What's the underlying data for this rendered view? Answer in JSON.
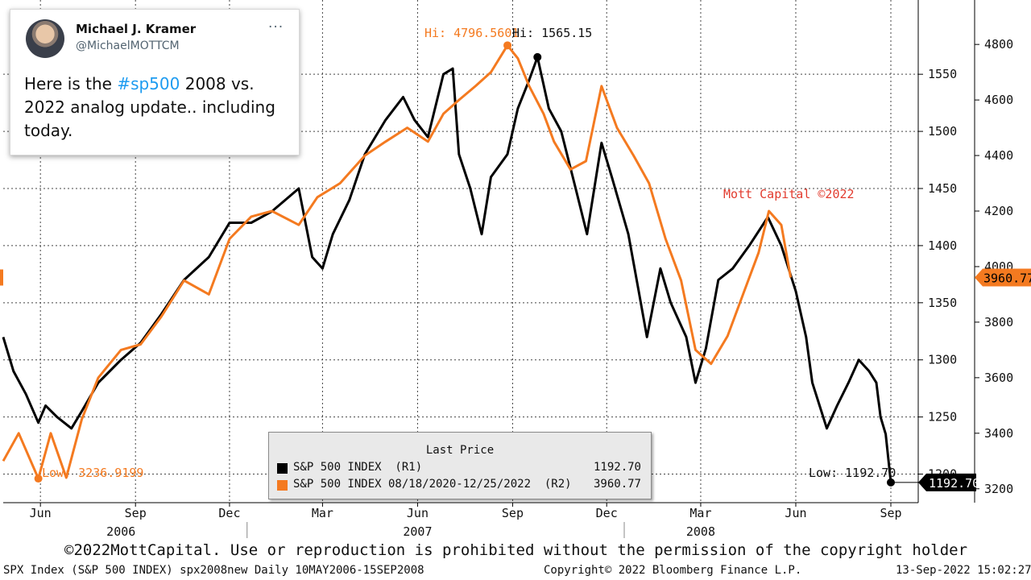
{
  "tweet": {
    "author_name": "Michael J. Kramer",
    "handle": "@MichaelMOTTCM",
    "more": "···",
    "text_before": "Here is the ",
    "hashtag": "#sp500",
    "text_after": " 2008 vs. 2022 analog update.. including today."
  },
  "chart_data": {
    "type": "line",
    "x_axis": {
      "month_labels": [
        "Jun",
        "Sep",
        "Dec",
        "Mar",
        "Jun",
        "Sep",
        "Dec",
        "Mar",
        "Jun",
        "Sep"
      ],
      "year_labels": [
        "2006",
        "2007",
        "2008"
      ],
      "date_range": [
        "2006-05-10",
        "2008-09-15"
      ]
    },
    "left_axis": {
      "ylim": [
        1175,
        1615
      ],
      "ticks": [
        1200,
        1250,
        1300,
        1350,
        1400,
        1450,
        1500,
        1550
      ]
    },
    "right_axis": {
      "ylim": [
        3150,
        4960
      ],
      "ticks": [
        3200,
        3400,
        3600,
        3800,
        4000,
        4200,
        4400,
        4600,
        4800
      ]
    },
    "grid": true,
    "series": [
      {
        "name": "S&P 500 INDEX  (R1)",
        "axis": "left",
        "color": "#000000",
        "x": [
          "2006-05-10",
          "2006-05-20",
          "2006-06-01",
          "2006-06-13",
          "2006-06-20",
          "2006-07-01",
          "2006-07-15",
          "2006-07-25",
          "2006-08-10",
          "2006-09-01",
          "2006-09-20",
          "2006-10-10",
          "2006-11-01",
          "2006-11-25",
          "2006-12-15",
          "2007-01-05",
          "2007-01-25",
          "2007-02-20",
          "2007-03-05",
          "2007-03-15",
          "2007-03-25",
          "2007-04-10",
          "2007-04-25",
          "2007-05-15",
          "2007-06-01",
          "2007-06-12",
          "2007-06-25",
          "2007-07-10",
          "2007-07-19",
          "2007-07-25",
          "2007-08-05",
          "2007-08-16",
          "2007-08-25",
          "2007-09-10",
          "2007-09-20",
          "2007-10-01",
          "2007-10-09",
          "2007-10-20",
          "2007-11-01",
          "2007-11-15",
          "2007-11-26",
          "2007-12-10",
          "2007-12-20",
          "2008-01-05",
          "2008-01-15",
          "2008-01-23",
          "2008-02-05",
          "2008-02-15",
          "2008-03-01",
          "2008-03-10",
          "2008-03-20",
          "2008-04-01",
          "2008-04-15",
          "2008-05-01",
          "2008-05-19",
          "2008-06-01",
          "2008-06-15",
          "2008-06-25",
          "2008-07-01",
          "2008-07-15",
          "2008-07-25",
          "2008-08-05",
          "2008-08-15",
          "2008-08-25",
          "2008-09-01",
          "2008-09-05",
          "2008-09-10",
          "2008-09-15"
        ],
        "values": [
          1320,
          1290,
          1270,
          1245,
          1260,
          1250,
          1240,
          1255,
          1280,
          1300,
          1315,
          1340,
          1370,
          1390,
          1420,
          1420,
          1430,
          1450,
          1390,
          1380,
          1410,
          1440,
          1480,
          1510,
          1530,
          1510,
          1495,
          1550,
          1555,
          1480,
          1450,
          1410,
          1460,
          1480,
          1520,
          1545,
          1565,
          1520,
          1500,
          1450,
          1410,
          1490,
          1460,
          1410,
          1360,
          1320,
          1380,
          1350,
          1320,
          1280,
          1310,
          1370,
          1380,
          1400,
          1425,
          1400,
          1360,
          1320,
          1280,
          1240,
          1260,
          1280,
          1300,
          1290,
          1280,
          1250,
          1235,
          1192.7
        ]
      },
      {
        "name": "S&P 500 INDEX 08/18/2020-12/25/2022  (R2)",
        "axis": "right",
        "color": "#f47a20",
        "x": [
          "2006-05-10",
          "2006-05-25",
          "2006-06-13",
          "2006-06-25",
          "2006-07-10",
          "2006-07-25",
          "2006-08-10",
          "2006-09-01",
          "2006-09-20",
          "2006-10-10",
          "2006-11-01",
          "2006-11-25",
          "2006-12-15",
          "2007-01-05",
          "2007-01-25",
          "2007-02-20",
          "2007-03-10",
          "2007-04-01",
          "2007-04-25",
          "2007-05-15",
          "2007-06-05",
          "2007-06-25",
          "2007-07-10",
          "2007-07-25",
          "2007-08-10",
          "2007-08-25",
          "2007-09-10",
          "2007-09-20",
          "2007-10-01",
          "2007-10-15",
          "2007-10-25",
          "2007-11-10",
          "2007-11-25",
          "2007-12-10",
          "2007-12-25",
          "2008-01-10",
          "2008-01-25",
          "2008-02-10",
          "2008-02-25",
          "2008-03-10",
          "2008-03-25",
          "2008-04-10",
          "2008-04-25",
          "2008-05-10",
          "2008-05-20",
          "2008-06-01",
          "2008-06-10"
        ],
        "values": [
          3300,
          3400,
          3236.9,
          3400,
          3240,
          3450,
          3600,
          3700,
          3720,
          3820,
          3950,
          3900,
          4100,
          4180,
          4200,
          4150,
          4250,
          4300,
          4400,
          4450,
          4500,
          4450,
          4550,
          4600,
          4650,
          4700,
          4796.56,
          4750,
          4650,
          4550,
          4450,
          4350,
          4380,
          4650,
          4500,
          4400,
          4300,
          4100,
          3950,
          3700,
          3650,
          3750,
          3900,
          4050,
          4200,
          4150,
          3960.77
        ]
      }
    ],
    "annotations": {
      "hi_r2": "Hi: 4796.5601",
      "hi_r1": "Hi: 1565.15",
      "low_r2": "Low: 3236.9199",
      "low_r1": "Low: 1192.70",
      "watermark": "Mott Capital ©2022",
      "last_left": "1192.70",
      "last_right": "3960.77"
    },
    "legend": {
      "title": "Last Price",
      "entries": [
        {
          "name": "S&P 500 INDEX  (R1)",
          "value": "1192.70",
          "color": "#000000"
        },
        {
          "name": "S&P 500 INDEX 08/18/2020-12/25/2022  (R2)",
          "value": "3960.77",
          "color": "#f47a20"
        }
      ]
    }
  },
  "footer": {
    "copyright_notice": "©2022MottCapital. Use or reproduction is prohibited without the permission of the copyright holder",
    "ticker_info": "SPX Index (S&P 500 INDEX) spx2008new  Daily 10MAY2006-15SEP2008",
    "bloomberg": "Copyright© 2022 Bloomberg Finance L.P.",
    "timestamp": "13-Sep-2022 15:02:27"
  }
}
